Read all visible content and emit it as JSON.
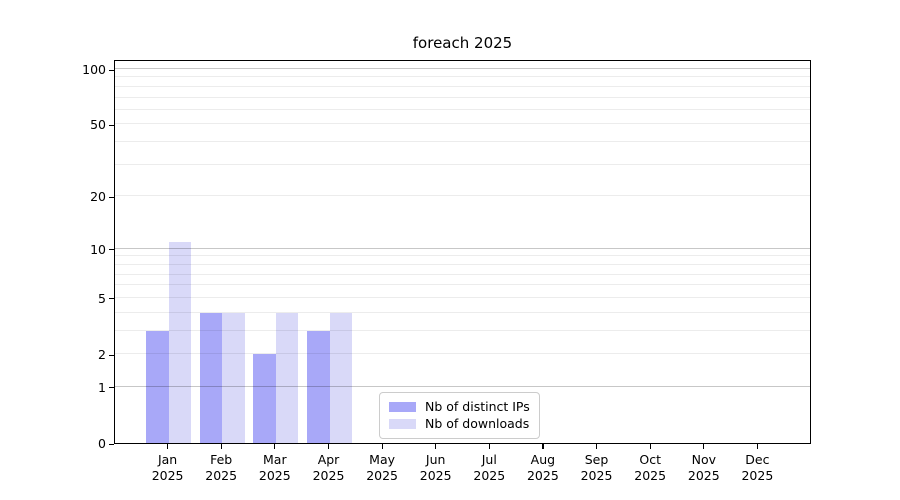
{
  "chart_data": {
    "type": "bar",
    "title": "foreach 2025",
    "xlabel": "",
    "ylabel": "",
    "year_label": "2025",
    "categories": [
      "Jan",
      "Feb",
      "Mar",
      "Apr",
      "May",
      "Jun",
      "Jul",
      "Aug",
      "Sep",
      "Oct",
      "Nov",
      "Dec"
    ],
    "series": [
      {
        "name": "Nb of distinct IPs",
        "color": "#a8a8f8",
        "values": [
          3,
          4,
          2,
          3,
          0,
          0,
          0,
          0,
          0,
          0,
          0,
          0
        ]
      },
      {
        "name": "Nb of downloads",
        "color": "#d9d9f8",
        "values": [
          11,
          4,
          4,
          4,
          0,
          0,
          0,
          0,
          0,
          0,
          0,
          0
        ]
      }
    ],
    "y_axis": {
      "scale": "log10(1+x)",
      "ticks": [
        0,
        1,
        2,
        5,
        10,
        20,
        50,
        100
      ],
      "ylim": [
        0,
        113
      ],
      "minor_gridlines": [
        2,
        3,
        4,
        5,
        6,
        7,
        8,
        9,
        20,
        30,
        40,
        50,
        60,
        70,
        80,
        90
      ],
      "major_gridlines": [
        1,
        10,
        100
      ]
    },
    "legend": {
      "position": "lower-center",
      "entries": [
        "Nb of distinct IPs",
        "Nb of downloads"
      ]
    },
    "grid": "on"
  }
}
